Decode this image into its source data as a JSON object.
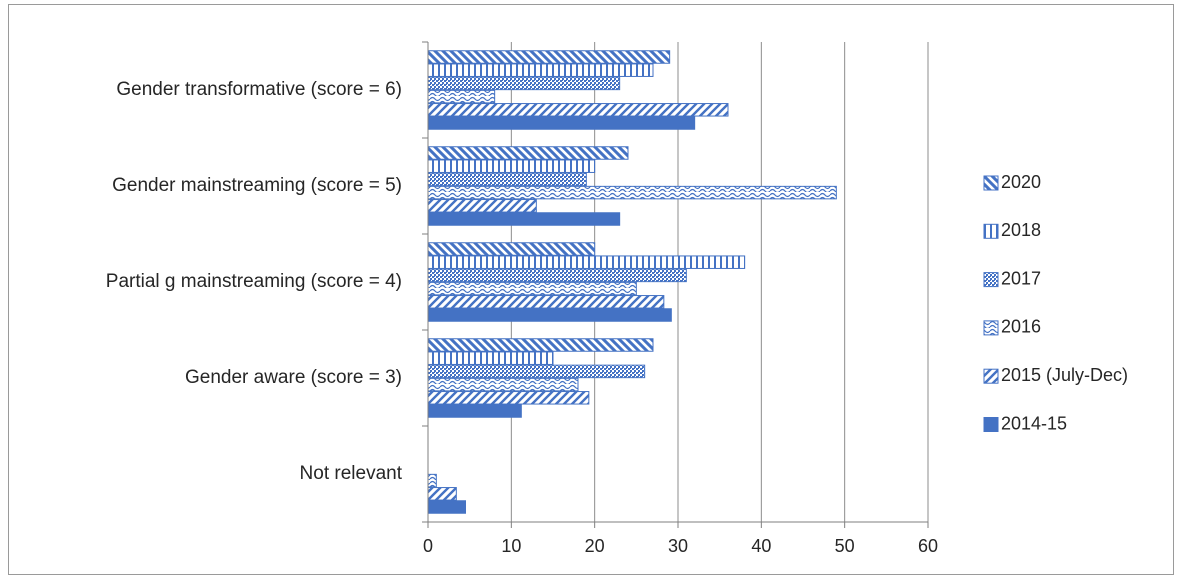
{
  "chart_data": {
    "type": "bar",
    "orientation": "horizontal",
    "categories": [
      "Gender transformative (score = 6)",
      "Gender mainstreaming (score = 5)",
      "Partial g mainstreaming (score = 4)",
      "Gender aware (score = 3)",
      "Not relevant"
    ],
    "series": [
      {
        "name": "2020",
        "pattern": "diag-down",
        "values": [
          29,
          24,
          20,
          27,
          0
        ]
      },
      {
        "name": "2018",
        "pattern": "vertical",
        "values": [
          27,
          20,
          38,
          15,
          0
        ]
      },
      {
        "name": "2017",
        "pattern": "dots-dense",
        "values": [
          23,
          19,
          31,
          26,
          0
        ]
      },
      {
        "name": "2016",
        "pattern": "waves",
        "values": [
          8,
          49,
          25,
          18,
          1
        ]
      },
      {
        "name": "2015 (July-Dec)",
        "pattern": "diag-up",
        "values": [
          36,
          13,
          28.3,
          19.3,
          3.4
        ]
      },
      {
        "name": "2014-15",
        "pattern": "solid",
        "values": [
          32,
          23,
          29.2,
          11.2,
          4.5
        ]
      }
    ],
    "xlim": [
      0,
      60
    ],
    "x_ticks": [
      0,
      10,
      20,
      30,
      40,
      50,
      60
    ],
    "grid": "vertical",
    "legend": "right",
    "colors": {
      "bar": "#4472c4",
      "grid": "#8c8c8c",
      "axis": "#7f7f7f"
    }
  }
}
